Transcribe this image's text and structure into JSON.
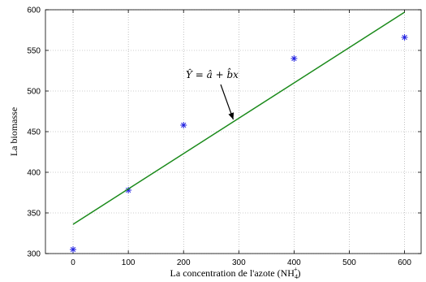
{
  "chart_data": {
    "type": "scatter",
    "xlabel": "La concentration de l'azote (NH",
    "xlabel_sub": "4",
    "xlabel_sup": "+",
    "xlabel_end": ")",
    "ylabel": "La biomasse",
    "xlim": [
      -50,
      630
    ],
    "ylim": [
      300,
      600
    ],
    "x_ticks": [
      0,
      100,
      200,
      300,
      400,
      500,
      600
    ],
    "y_ticks": [
      300,
      350,
      400,
      450,
      500,
      550,
      600
    ],
    "grid": true,
    "series": [
      {
        "kind": "points",
        "marker": "asterisk",
        "color": "#1f1fe0",
        "x": [
          0,
          100,
          200,
          400,
          600
        ],
        "y": [
          305,
          378,
          458,
          540,
          566
        ]
      },
      {
        "kind": "line",
        "color": "#1a8a1a",
        "x": [
          0,
          600
        ],
        "y": [
          336,
          597
        ]
      }
    ],
    "annotation": {
      "text": "Ŷ = â + b̂x",
      "points_to": [
        290,
        465
      ]
    }
  }
}
